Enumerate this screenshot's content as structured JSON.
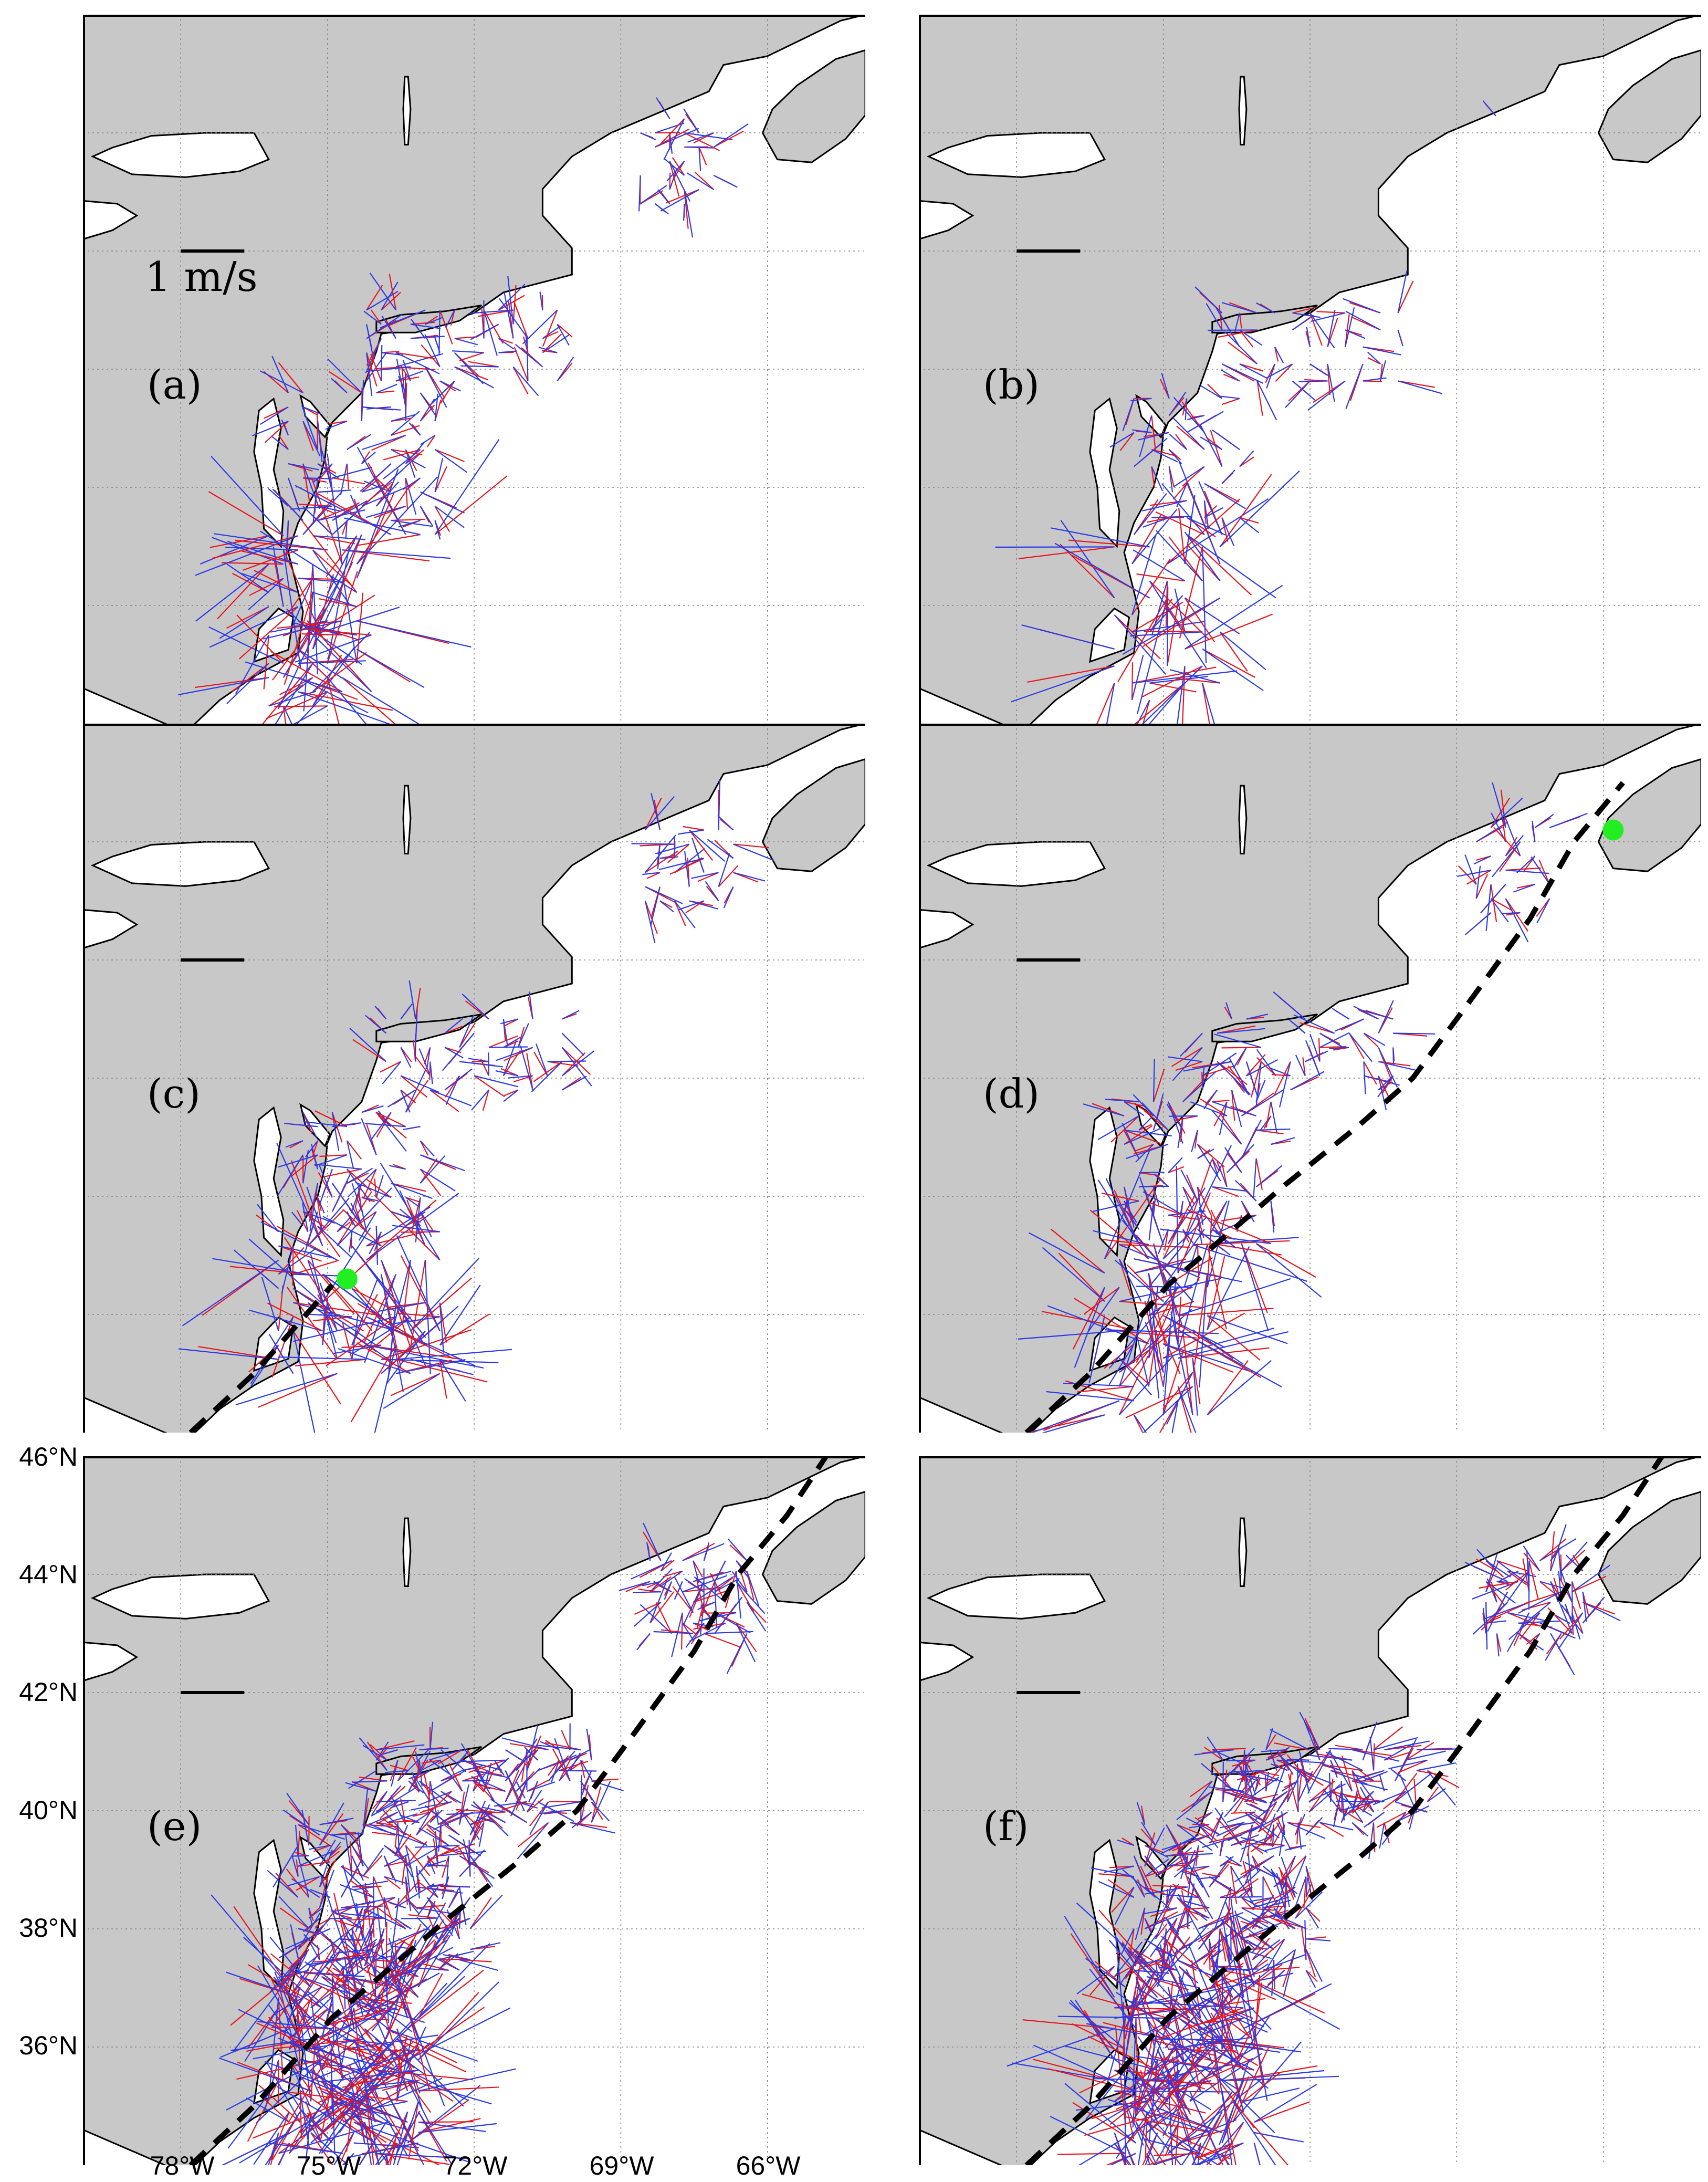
{
  "colors": {
    "land": "#c8c8c8",
    "ocean": "#ffffff",
    "coastline": "#000000",
    "grid": "#808080",
    "vector_observed": "#e8141c",
    "vector_model": "#2a3ae8",
    "storm_center": "#22ee22",
    "storm_track": "#000000"
  },
  "scale_bar": {
    "label": "1 m/s",
    "value": 1,
    "units": "m/s"
  },
  "axes": {
    "latitude_ticks": [
      "46°N",
      "44°N",
      "42°N",
      "40°N",
      "38°N",
      "36°N"
    ],
    "longitude_ticks": [
      "78°W",
      "75°W",
      "72°W",
      "69°W",
      "66°W"
    ],
    "lat_range": [
      34.0,
      46.0
    ],
    "lon_range": [
      -80.0,
      -64.0
    ],
    "grid": true
  },
  "panels": [
    {
      "id": "a",
      "label": "(a)",
      "storm_track": false,
      "storm_center": null,
      "region": "full"
    },
    {
      "id": "b",
      "label": "(b)",
      "storm_track": false,
      "storm_center": null,
      "region": "sparse"
    },
    {
      "id": "c",
      "label": "(c)",
      "storm_track": true,
      "storm_center": {
        "lat": 36.6,
        "lon": -74.6
      },
      "region": "southern-swirl"
    },
    {
      "id": "d",
      "label": "(d)",
      "storm_track": true,
      "storm_center": {
        "lat": 44.2,
        "lon": -65.8
      },
      "region": "full"
    },
    {
      "id": "e",
      "label": "(e)",
      "storm_track": true,
      "storm_center": null,
      "region": "dense"
    },
    {
      "id": "f",
      "label": "(f)",
      "storm_track": true,
      "storm_center": null,
      "region": "dense"
    }
  ]
}
